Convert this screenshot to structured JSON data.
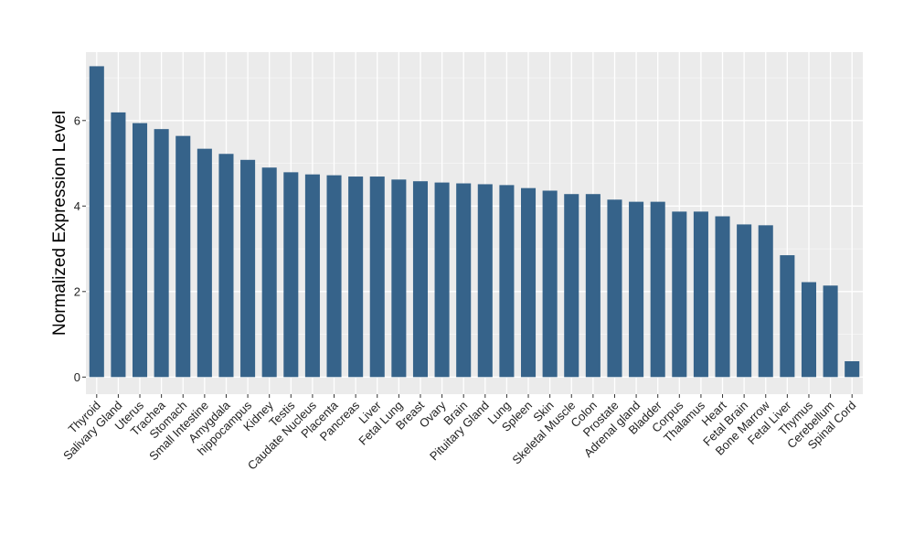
{
  "colors": {
    "bar": "#36638A",
    "panel": "#EBEBEB",
    "grid_major": "#FFFFFF",
    "grid_minor": "#F5F5F5",
    "text": "#000000"
  },
  "chart_data": {
    "type": "bar",
    "ylabel": "Normalized Expression Level",
    "ylim": [
      -0.4,
      7.6
    ],
    "yticks": [
      0,
      2,
      4,
      6
    ],
    "grid": true,
    "categories": [
      "Thyroid",
      "Salivary Gland",
      "Uterus",
      "Trachea",
      "Stomach",
      "Small Intestine",
      "Amygdala",
      "hippocampus",
      "Kidney",
      "Testis",
      "Caudate Nucleus",
      "Placenta",
      "Pancreas",
      "Liver",
      "Fetal Lung",
      "Breast",
      "Ovary",
      "Brain",
      "Pituitary Gland",
      "Lung",
      "Spleen",
      "Skin",
      "Skeletal Muscle",
      "Colon",
      "Prostate",
      "Adrenal gland",
      "Bladder",
      "Corpus",
      "Thalamus",
      "Heart",
      "Fetal Brain",
      "Bone Marrow",
      "Fetal Liver",
      "Thymus",
      "Cerebellum",
      "Spinal Cord"
    ],
    "values": [
      7.27,
      6.19,
      5.94,
      5.8,
      5.64,
      5.34,
      5.22,
      5.08,
      4.9,
      4.79,
      4.74,
      4.72,
      4.69,
      4.69,
      4.62,
      4.58,
      4.55,
      4.53,
      4.51,
      4.49,
      4.42,
      4.36,
      4.28,
      4.28,
      4.15,
      4.1,
      4.1,
      3.87,
      3.87,
      3.76,
      3.57,
      3.55,
      2.85,
      2.22,
      2.14,
      0.37
    ]
  }
}
